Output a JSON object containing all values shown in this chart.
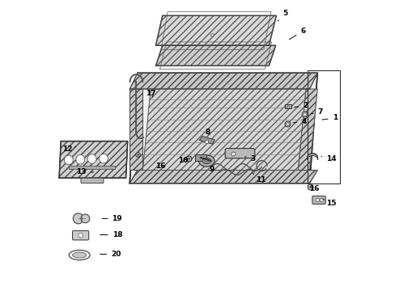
{
  "background_color": "#ffffff",
  "figsize": [
    4.89,
    3.6
  ],
  "dpi": 100,
  "label_map": {
    "1": [
      0.972,
      0.595,
      0.92,
      0.588
    ],
    "2": [
      0.87,
      0.637,
      0.825,
      0.632
    ],
    "3": [
      0.69,
      0.455,
      0.655,
      0.463
    ],
    "4": [
      0.865,
      0.582,
      0.82,
      0.578
    ],
    "5": [
      0.8,
      0.955,
      0.775,
      0.93
    ],
    "6": [
      0.862,
      0.895,
      0.808,
      0.862
    ],
    "7": [
      0.922,
      0.615,
      0.882,
      0.608
    ],
    "8": [
      0.535,
      0.545,
      0.54,
      0.53
    ],
    "9": [
      0.548,
      0.418,
      0.545,
      0.435
    ],
    "10": [
      0.448,
      0.448,
      0.468,
      0.455
    ],
    "11": [
      0.718,
      0.382,
      0.688,
      0.405
    ],
    "12": [
      0.05,
      0.488,
      0.078,
      0.495
    ],
    "13": [
      0.098,
      0.408,
      0.148,
      0.408
    ],
    "14": [
      0.96,
      0.455,
      0.925,
      0.462
    ],
    "15": [
      0.96,
      0.302,
      0.93,
      0.315
    ],
    "16a": [
      0.372,
      0.428,
      0.395,
      0.432
    ],
    "16b": [
      0.9,
      0.352,
      0.882,
      0.36
    ],
    "17": [
      0.338,
      0.68,
      0.348,
      0.66
    ],
    "18": [
      0.222,
      0.192,
      0.155,
      0.192
    ],
    "19": [
      0.222,
      0.248,
      0.162,
      0.248
    ],
    "20": [
      0.218,
      0.125,
      0.155,
      0.125
    ]
  },
  "display_labels": {
    "1": "1",
    "2": "2",
    "3": "3",
    "4": "4",
    "5": "5",
    "6": "6",
    "7": "7",
    "8": "8",
    "9": "9",
    "10": "10",
    "11": "11",
    "12": "12",
    "13": "13",
    "14": "14",
    "15": "15",
    "16a": "16",
    "16b": "16",
    "17": "17",
    "18": "18",
    "19": "19",
    "20": "20"
  }
}
